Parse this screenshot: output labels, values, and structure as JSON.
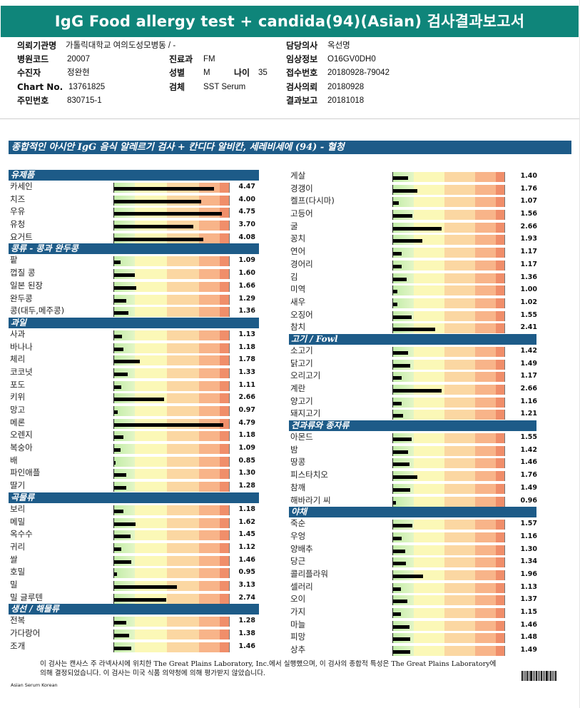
{
  "report": {
    "title": "IgG Food allergy test + candida(94)(Asian) 검사결과보고서",
    "fields": [
      {
        "label": "의뢰기관명",
        "value": "가톨릭대학교 여의도성모병동      / -"
      },
      {
        "label": "병원코드",
        "value": "20007"
      },
      {
        "label": "수진자",
        "value": "정완현"
      },
      {
        "label": "Chart No.",
        "value": "13761825"
      },
      {
        "label": "주민번호",
        "value": "830715-1"
      },
      {
        "label": "진료과",
        "value": "FM"
      },
      {
        "label": "성별",
        "value": "M"
      },
      {
        "label": "나이",
        "value": "35"
      },
      {
        "label": "검체",
        "value": "SST Serum"
      },
      {
        "label": "담당의사",
        "value": "옥선명"
      },
      {
        "label": "임상정보",
        "value": "O16GV0DH0"
      },
      {
        "label": "접수번호",
        "value": "20180928-79042"
      },
      {
        "label": "검사의뢰",
        "value": "20180928"
      },
      {
        "label": "결과보고",
        "value": "20181018"
      }
    ],
    "main_title": "종합적인 아시안 IgG 음식 알레르기 검사 + 칸디다 알비칸, 세레비세에 (94) - 혈청",
    "scale_max": 5.0,
    "left_column": [
      {
        "category": "유제품",
        "items": [
          {
            "name": "카세인",
            "value": 4.47
          },
          {
            "name": "치즈",
            "value": 4.0
          },
          {
            "name": "우유",
            "value": 4.75
          },
          {
            "name": "유청",
            "value": 3.7
          },
          {
            "name": "요거트",
            "value": 4.08
          }
        ]
      },
      {
        "category": "콩류 - 콩과 완두콩",
        "items": [
          {
            "name": "팥",
            "value": 1.09
          },
          {
            "name": "껍질 콩",
            "value": 1.6
          },
          {
            "name": "일본 된장",
            "value": 1.66
          },
          {
            "name": "완두콩",
            "value": 1.29
          },
          {
            "name": "콩(대두,메주콩)",
            "value": 1.36
          }
        ]
      },
      {
        "category": "과일",
        "items": [
          {
            "name": "사과",
            "value": 1.13
          },
          {
            "name": "바나나",
            "value": 1.18
          },
          {
            "name": "체리",
            "value": 1.78
          },
          {
            "name": "코코넛",
            "value": 1.33
          },
          {
            "name": "포도",
            "value": 1.11
          },
          {
            "name": "키위",
            "value": 2.66
          },
          {
            "name": "망고",
            "value": 0.97
          },
          {
            "name": "메론",
            "value": 4.79
          },
          {
            "name": "오렌지",
            "value": 1.18
          },
          {
            "name": "복숭아",
            "value": 1.09
          },
          {
            "name": "배",
            "value": 0.85
          },
          {
            "name": "파인애플",
            "value": 1.3
          },
          {
            "name": "딸기",
            "value": 1.28
          }
        ]
      },
      {
        "category": "곡물류",
        "items": [
          {
            "name": "보리",
            "value": 1.18
          },
          {
            "name": "메밀",
            "value": 1.62
          },
          {
            "name": "옥수수",
            "value": 1.45
          },
          {
            "name": "귀리",
            "value": 1.12
          },
          {
            "name": "쌀",
            "value": 1.46
          },
          {
            "name": "호밀",
            "value": 0.95
          },
          {
            "name": "밀",
            "value": 3.13
          },
          {
            "name": "밀 글루텐",
            "value": 2.74
          }
        ]
      },
      {
        "category": "생선 / 해물류",
        "items": [
          {
            "name": "전복",
            "value": 1.28
          },
          {
            "name": "가다랑어",
            "value": 1.38
          },
          {
            "name": "조개",
            "value": 1.46
          }
        ]
      }
    ],
    "right_column": [
      {
        "category": "",
        "items": [
          {
            "name": "게살",
            "value": 1.4
          },
          {
            "name": "경갱이",
            "value": 1.76
          },
          {
            "name": "켈프(다시마)",
            "value": 1.07
          },
          {
            "name": "고등어",
            "value": 1.56
          },
          {
            "name": "굴",
            "value": 2.66
          },
          {
            "name": "꽁치",
            "value": 1.93
          },
          {
            "name": "연어",
            "value": 1.17
          },
          {
            "name": "경어리",
            "value": 1.17
          },
          {
            "name": "김",
            "value": 1.36
          },
          {
            "name": "미역",
            "value": 1.0
          },
          {
            "name": "새우",
            "value": 1.02
          },
          {
            "name": "오징어",
            "value": 1.55
          },
          {
            "name": "참치",
            "value": 2.41
          }
        ]
      },
      {
        "category": "고기 / Fowl",
        "items": [
          {
            "name": "소고기",
            "value": 1.42
          },
          {
            "name": "닭고기",
            "value": 1.49
          },
          {
            "name": "오리고기",
            "value": 1.17
          },
          {
            "name": "계란",
            "value": 2.66
          },
          {
            "name": "양고기",
            "value": 1.16
          },
          {
            "name": "돼지고기",
            "value": 1.21
          }
        ]
      },
      {
        "category": "견과류와 종자류",
        "items": [
          {
            "name": "아몬드",
            "value": 1.55
          },
          {
            "name": "밤",
            "value": 1.42
          },
          {
            "name": "땅콩",
            "value": 1.46
          },
          {
            "name": "피스타치오",
            "value": 1.76
          },
          {
            "name": "참깨",
            "value": 1.49
          },
          {
            "name": "해바라기 씨",
            "value": 0.96
          }
        ]
      },
      {
        "category": "야채",
        "items": [
          {
            "name": "죽순",
            "value": 1.57
          },
          {
            "name": "우엉",
            "value": 1.16
          },
          {
            "name": "양배추",
            "value": 1.3
          },
          {
            "name": "당근",
            "value": 1.34
          },
          {
            "name": "콜리플라워",
            "value": 1.96
          },
          {
            "name": "셀러리",
            "value": 1.13
          },
          {
            "name": "오이",
            "value": 1.37
          },
          {
            "name": "가지",
            "value": 1.15
          },
          {
            "name": "마늘",
            "value": 1.46
          },
          {
            "name": "피망",
            "value": 1.48
          },
          {
            "name": "상추",
            "value": 1.49
          }
        ]
      }
    ],
    "footnote": "이 검사는 캔사스 주 라넥사시에 위치한 The Great Plains Laboratory, Inc.에서 실행했으며,  이 검사의 종합적 특성은 The Great Plains Laboratory에 의해 결정되었습니다. 이 검사는 미국 식품 의약청에 의해 평가받지 않았습니다.",
    "form_code": "Asian Serum Korean"
  }
}
